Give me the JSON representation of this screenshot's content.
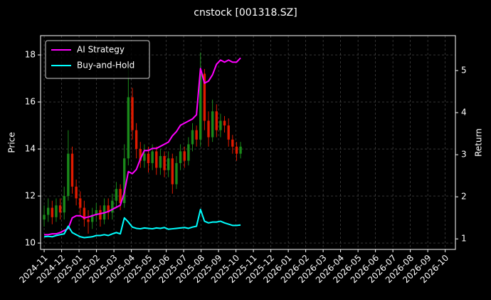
{
  "chart_data": {
    "type": "candlestick",
    "title": "cnstock [001318.SZ]",
    "ylabel": "Price",
    "y2label": "Return",
    "categories": [
      null,
      null,
      null,
      null,
      null,
      null,
      null,
      null,
      null,
      null,
      null,
      null,
      null,
      null,
      null,
      null,
      null,
      null,
      null,
      null,
      null,
      null,
      null,
      null,
      null,
      null,
      null,
      null,
      null,
      null,
      null,
      null,
      null,
      null,
      null,
      null,
      null,
      null,
      null,
      null,
      null,
      null,
      null,
      null,
      null,
      null,
      null,
      null,
      null,
      null
    ],
    "ohlc": {
      "up_color": "#1a8a1a",
      "down_color": "#e01a00",
      "open": [
        11.0,
        11.2,
        11.5,
        11.1,
        11.6,
        11.3,
        12.0,
        13.8,
        12.4,
        11.9,
        11.5,
        11.0,
        10.9,
        11.2,
        11.4,
        11.0,
        11.6,
        11.3,
        11.8,
        12.3,
        11.7,
        13.6,
        16.2,
        14.8,
        14.0,
        13.5,
        13.8,
        13.4,
        13.9,
        13.2,
        13.7,
        13.1,
        13.6,
        12.5,
        13.4,
        13.9,
        13.5,
        14.2,
        14.8,
        14.4,
        17.2,
        15.2,
        14.5,
        15.6,
        14.8,
        15.2,
        15.0,
        14.4,
        14.1,
        13.8
      ],
      "high": [
        11.6,
        11.9,
        11.8,
        11.9,
        11.9,
        12.4,
        14.8,
        14.1,
        12.7,
        12.2,
        11.8,
        11.4,
        11.5,
        11.7,
        11.6,
        11.9,
        11.9,
        12.1,
        12.6,
        12.5,
        14.2,
        17.5,
        16.6,
        15.1,
        14.3,
        14.2,
        14.1,
        14.2,
        14.1,
        14.0,
        13.9,
        13.9,
        13.8,
        13.7,
        14.2,
        14.1,
        14.5,
        15.1,
        15.0,
        18.1,
        17.4,
        15.6,
        16.1,
        15.9,
        15.5,
        15.4,
        15.3,
        14.6,
        14.3,
        14.3
      ],
      "low": [
        10.7,
        10.9,
        10.8,
        10.9,
        11.0,
        11.0,
        11.8,
        12.1,
        11.6,
        11.2,
        10.7,
        10.4,
        10.6,
        10.9,
        10.7,
        10.8,
        11.0,
        11.0,
        11.5,
        11.4,
        11.5,
        13.3,
        14.4,
        13.6,
        13.2,
        13.2,
        13.0,
        13.1,
        12.9,
        12.9,
        12.8,
        12.8,
        12.1,
        12.3,
        13.1,
        13.2,
        13.3,
        13.9,
        14.1,
        14.1,
        14.8,
        14.1,
        14.3,
        14.5,
        14.5,
        14.7,
        14.1,
        13.8,
        13.5,
        13.6
      ],
      "close": [
        11.2,
        11.5,
        11.1,
        11.6,
        11.3,
        12.0,
        13.8,
        12.4,
        11.9,
        11.5,
        11.0,
        10.9,
        11.2,
        11.4,
        11.0,
        11.6,
        11.3,
        11.8,
        12.3,
        11.7,
        13.6,
        16.2,
        14.8,
        14.0,
        13.5,
        13.8,
        13.4,
        13.9,
        13.2,
        13.7,
        13.1,
        13.6,
        12.5,
        13.4,
        13.9,
        13.5,
        14.2,
        14.8,
        14.4,
        17.2,
        15.2,
        14.5,
        15.6,
        14.8,
        15.2,
        15.0,
        14.4,
        14.1,
        13.8,
        14.1
      ]
    },
    "series": [
      {
        "name": "AI Strategy",
        "color": "#ff00ff",
        "axis": "y2",
        "values": [
          1.1,
          1.1,
          1.12,
          1.12,
          1.15,
          1.2,
          1.25,
          1.5,
          1.55,
          1.55,
          1.5,
          1.52,
          1.55,
          1.58,
          1.6,
          1.62,
          1.65,
          1.7,
          1.75,
          1.8,
          2.1,
          2.6,
          2.55,
          2.65,
          2.9,
          3.1,
          3.1,
          3.15,
          3.15,
          3.2,
          3.25,
          3.3,
          3.45,
          3.55,
          3.7,
          3.75,
          3.8,
          3.85,
          3.95,
          5.05,
          4.7,
          4.75,
          4.9,
          5.15,
          5.25,
          5.2,
          5.25,
          5.2,
          5.2,
          5.3
        ]
      },
      {
        "name": "Buy-and-Hold",
        "color": "#00ffff",
        "axis": "y2",
        "values": [
          1.05,
          1.06,
          1.05,
          1.08,
          1.1,
          1.12,
          1.3,
          1.15,
          1.1,
          1.05,
          1.03,
          1.04,
          1.05,
          1.08,
          1.08,
          1.1,
          1.08,
          1.12,
          1.15,
          1.12,
          1.5,
          1.4,
          1.28,
          1.25,
          1.24,
          1.26,
          1.25,
          1.24,
          1.26,
          1.25,
          1.27,
          1.23,
          1.24,
          1.25,
          1.26,
          1.27,
          1.25,
          1.28,
          1.3,
          1.7,
          1.42,
          1.38,
          1.4,
          1.4,
          1.42,
          1.38,
          1.35,
          1.32,
          1.32,
          1.33
        ]
      }
    ],
    "xlim": [
      -0.9,
      102.6
    ],
    "xticks": [
      {
        "value": 0,
        "label": "2024-11"
      },
      {
        "value": 4.35,
        "label": "2024-12"
      },
      {
        "value": 8.7,
        "label": "2025-01"
      },
      {
        "value": 13.05,
        "label": "2025-02"
      },
      {
        "value": 17.4,
        "label": "2025-03"
      },
      {
        "value": 21.75,
        "label": "2025-04"
      },
      {
        "value": 26.1,
        "label": "2025-05"
      },
      {
        "value": 30.45,
        "label": "2025-06"
      },
      {
        "value": 34.8,
        "label": "2025-07"
      },
      {
        "value": 39.15,
        "label": "2025-08"
      },
      {
        "value": 43.5,
        "label": "2025-09"
      },
      {
        "value": 47.85,
        "label": "2025-10"
      },
      {
        "value": 52.2,
        "label": "2025-11"
      },
      {
        "value": 56.55,
        "label": "2025-12"
      },
      {
        "value": 60.9,
        "label": "2026-01"
      },
      {
        "value": 65.25,
        "label": "2026-02"
      },
      {
        "value": 69.6,
        "label": "2026-03"
      },
      {
        "value": 73.95,
        "label": "2026-04"
      },
      {
        "value": 78.3,
        "label": "2026-05"
      },
      {
        "value": 82.65,
        "label": "2026-06"
      },
      {
        "value": 87,
        "label": "2026-07"
      },
      {
        "value": 91.35,
        "label": "2026-08"
      },
      {
        "value": 95.7,
        "label": "2026-09"
      },
      {
        "value": 100.05,
        "label": "2026-10"
      }
    ],
    "ylim": [
      9.73,
      18.82
    ],
    "yticks": [
      10,
      12,
      14,
      16,
      18
    ],
    "y2lim": [
      0.75,
      5.83
    ],
    "y2ticks": [
      1,
      2,
      3,
      4,
      5
    ],
    "grid": true,
    "legend": "upper left"
  }
}
